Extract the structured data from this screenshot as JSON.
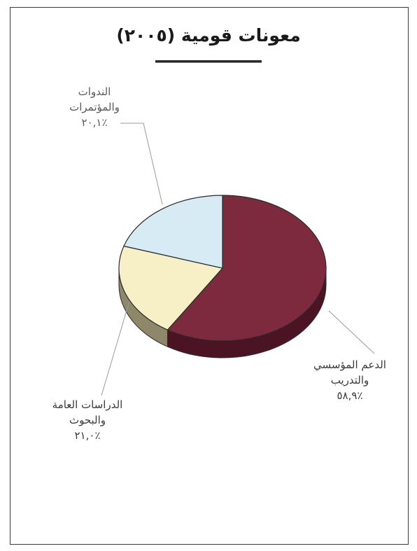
{
  "chart_data": {
    "type": "pie",
    "title": "معونات قومية (٢٠٠٥)",
    "slices": [
      {
        "label_line1": "الدعم المؤسسي",
        "label_line2": "والتدريب",
        "value": 58.9,
        "value_label": "٪٥٨,٩",
        "color": "#7d2a3f",
        "side_color": "#4a1424"
      },
      {
        "label_line1": "الدراسات العامة",
        "label_line2": "والبحوث",
        "value": 21.0,
        "value_label": "٪٢١,٠",
        "color": "#f7f0c6",
        "side_color": "#8f876a"
      },
      {
        "label_line1": "الندوات",
        "label_line2": "والمؤتمرات",
        "value": 20.1,
        "value_label": "٪٢٠,١",
        "color": "#d6ebf4",
        "side_color": "#8aa0aa"
      }
    ]
  }
}
